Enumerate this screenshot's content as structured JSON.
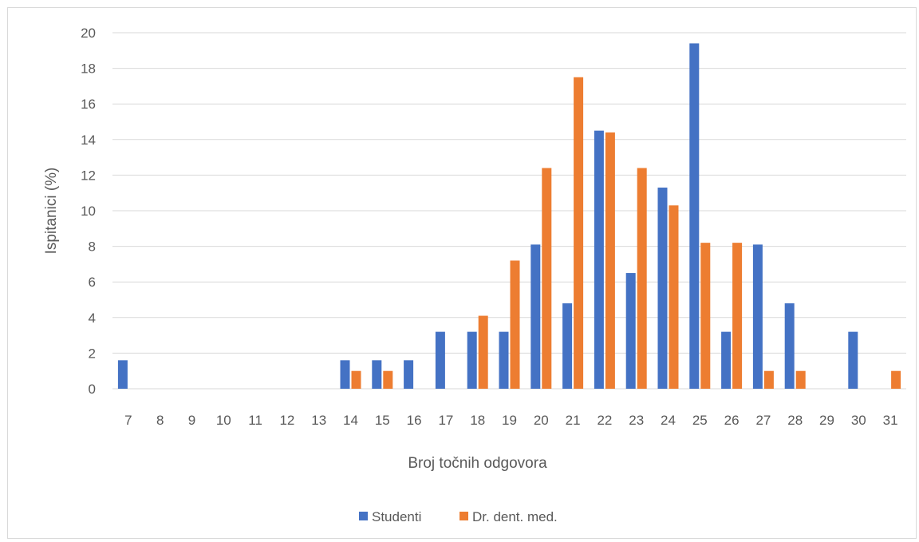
{
  "chart_data": {
    "type": "bar",
    "title": "",
    "xlabel": "Broj točnih odgovora",
    "ylabel": "Ispitanici (%)",
    "ylim": [
      0,
      20
    ],
    "yticks": [
      0,
      2,
      4,
      6,
      8,
      10,
      12,
      14,
      16,
      18,
      20
    ],
    "grid": true,
    "legend_position": "bottom",
    "categories": [
      "7",
      "8",
      "9",
      "10",
      "11",
      "12",
      "13",
      "14",
      "15",
      "16",
      "17",
      "18",
      "19",
      "20",
      "21",
      "22",
      "23",
      "24",
      "25",
      "26",
      "27",
      "28",
      "29",
      "30",
      "31"
    ],
    "series": [
      {
        "name": "Studenti",
        "color": "#4472c4",
        "values": [
          1.6,
          0,
          0,
          0,
          0,
          0,
          0,
          1.6,
          1.6,
          1.6,
          3.2,
          3.2,
          3.2,
          8.1,
          4.8,
          14.5,
          6.5,
          11.3,
          19.4,
          3.2,
          8.1,
          4.8,
          0,
          3.2,
          0
        ]
      },
      {
        "name": "Dr. dent. med.",
        "color": "#ed7d31",
        "values": [
          0,
          0,
          0,
          0,
          0,
          0,
          0,
          1.0,
          1.0,
          0,
          0,
          4.1,
          7.2,
          12.4,
          17.5,
          14.4,
          12.4,
          10.3,
          8.2,
          8.2,
          1.0,
          1.0,
          0,
          0,
          1.0
        ]
      }
    ]
  }
}
